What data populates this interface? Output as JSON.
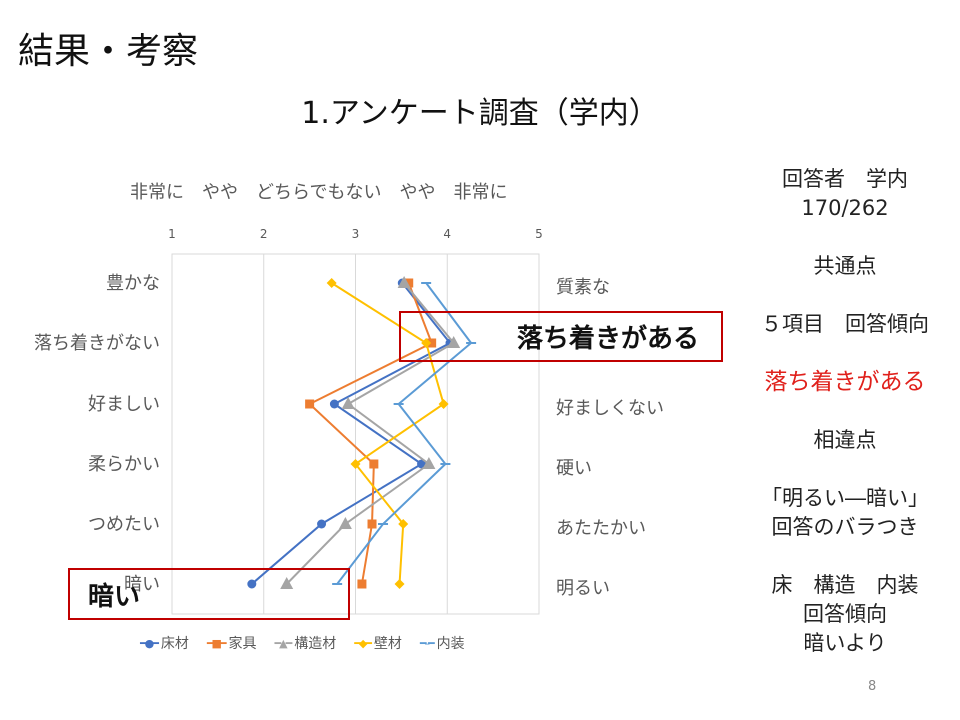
{
  "slide_title": "結果・考察",
  "page_number": "8",
  "chart_data": {
    "type": "line",
    "title": "1.アンケート調査（学内）",
    "scale_words": "非常に　やや　どちらでもない　やや　非常に",
    "xlim": [
      1,
      5
    ],
    "x_ticks": [
      "1",
      "2",
      "3",
      "4",
      "5"
    ],
    "grid": true,
    "left_labels": [
      "豊かな",
      "落ち着きがない",
      "好ましい",
      "柔らかい",
      "つめたい",
      "暗い"
    ],
    "right_labels": [
      "質素な",
      "落ち着きがある",
      "好ましくない",
      "硬い",
      "あたたかい",
      "明るい"
    ],
    "legend_position": "bottom",
    "series": [
      {
        "name": "床材",
        "color": "#4472c4",
        "marker": "circle",
        "values": [
          3.51,
          4.03,
          2.77,
          3.72,
          2.63,
          1.87
        ]
      },
      {
        "name": "家具",
        "color": "#ed7d31",
        "marker": "square",
        "values": [
          3.58,
          3.83,
          2.5,
          3.2,
          3.18,
          3.07
        ]
      },
      {
        "name": "構造材",
        "color": "#a5a5a5",
        "marker": "triangle",
        "values": [
          3.53,
          4.07,
          2.92,
          3.8,
          2.89,
          2.25
        ]
      },
      {
        "name": "壁材",
        "color": "#ffc000",
        "marker": "diamond",
        "values": [
          2.74,
          3.77,
          3.96,
          3.0,
          3.52,
          3.48
        ]
      },
      {
        "name": "内装",
        "color": "#5b9bd5",
        "marker": "dash",
        "values": [
          3.77,
          4.26,
          3.47,
          3.98,
          3.3,
          2.8
        ]
      }
    ]
  },
  "highlights": {
    "calm": "落ち着きがある",
    "dark": "暗い"
  },
  "side": {
    "respondents_label": "回答者　学内",
    "respondents_count": "170/262",
    "common_heading": "共通点",
    "common_text": "５項目　回答傾向",
    "common_result": "落ち着きがある",
    "diff_heading": "相違点",
    "diff_line1": "「明るい―暗い」",
    "diff_line2": "回答のバラつき",
    "diff_line3": "床　構造　内装",
    "diff_line4": "回答傾向",
    "diff_line5": "暗いより"
  },
  "colors": {
    "accent_red": "#e0201b",
    "box_red": "#c00000"
  }
}
